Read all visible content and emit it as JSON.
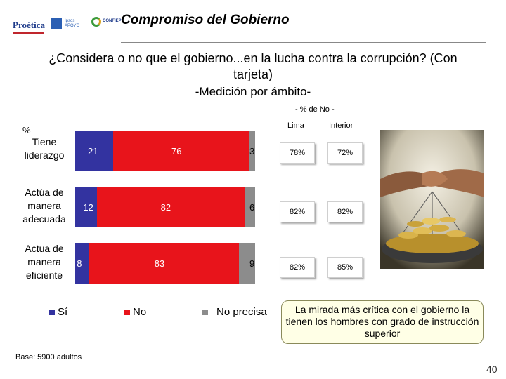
{
  "header": {
    "title": "Compromiso del Gobierno",
    "logos": {
      "proetica": "Proética",
      "apoyo": "Ipsos APOYO",
      "confiep": "CONFIEP"
    }
  },
  "question": "¿Considera o no que el gobierno...en la lucha contra la corrupción? (Con tarjeta)",
  "subtitle": "-Medición por ámbito-",
  "no_note": "- % de No -",
  "percent_symbol": "%",
  "colors": {
    "si": "#3333a0",
    "no": "#e8141b",
    "no_precisa": "#8c8c8c"
  },
  "chart_data": {
    "type": "bar",
    "orientation": "horizontal",
    "stacked": true,
    "categories": [
      "Tiene liderazgo",
      "Actúa de manera adecuada",
      "Actua de manera eficiente"
    ],
    "series": [
      {
        "name": "Sí",
        "values": [
          21,
          12,
          8
        ]
      },
      {
        "name": "No",
        "values": [
          76,
          82,
          83
        ]
      },
      {
        "name": "No precisa",
        "values": [
          3,
          6,
          9
        ]
      }
    ],
    "xlim": [
      0,
      100
    ],
    "legend": "bottom",
    "side_table": {
      "columns": [
        "Lima",
        "Interior"
      ],
      "rows": [
        [
          "78%",
          "72%"
        ],
        [
          "82%",
          "82%"
        ],
        [
          "82%",
          "85%"
        ]
      ]
    }
  },
  "callout": "La mirada más crítica con el gobierno la tienen los hombres con grado de instrucción superior",
  "base_note": "Base: 5900 adultos",
  "page_number": "40"
}
